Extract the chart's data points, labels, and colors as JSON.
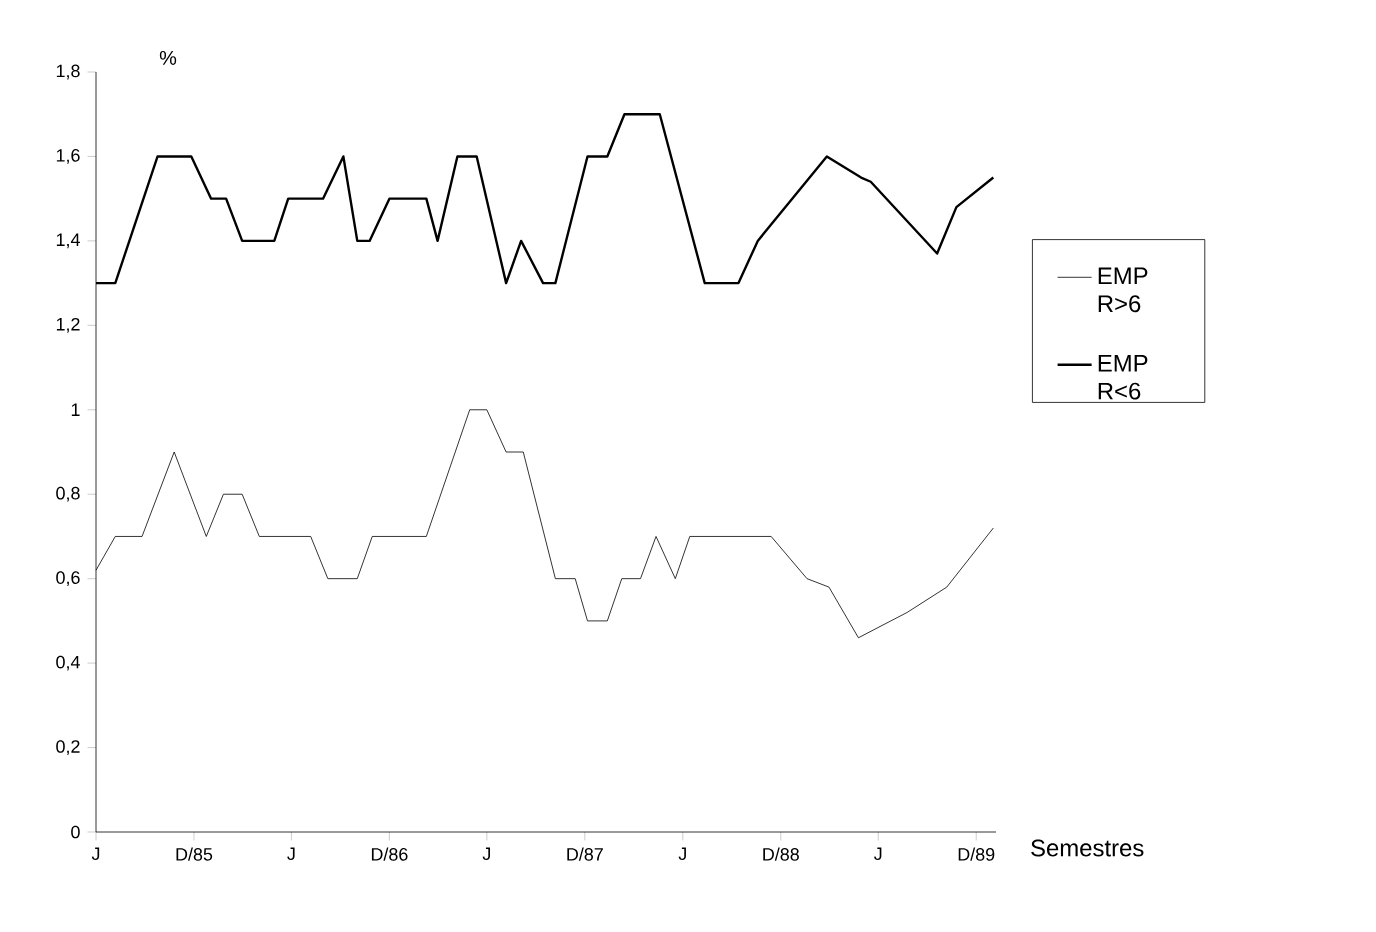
{
  "chart_data": {
    "type": "line",
    "ylabel": "%",
    "xlabel": "Semestres",
    "x": [
      "1985-06-01",
      "1985-07-07",
      "1985-09-24",
      "1985-11-26",
      "1986-01-02",
      "1986-01-30",
      "1986-03-01",
      "1986-04-30",
      "1986-05-26",
      "1986-07-30",
      "1986-09-06",
      "1986-10-02",
      "1986-10-25",
      "1986-12-01",
      "1987-02-08",
      "1987-03-01",
      "1987-04-07",
      "1987-05-13",
      "1987-07-07",
      "1987-08-04",
      "1987-09-14",
      "1987-10-07",
      "1987-12-06",
      "1988-01-12",
      "1988-02-13",
      "1988-04-19",
      "1988-07-12",
      "1988-09-13",
      "1988-10-19",
      "1989-02-25",
      "1989-04-30",
      "1989-05-18",
      "1989-09-19",
      "1989-10-25",
      "1990-01-02"
    ],
    "series": [
      {
        "name": "EMP R>6",
        "color": "#000000",
        "x": [
          "1985-06-01",
          "1985-07-07",
          "1985-08-26",
          "1985-10-25",
          "1985-12-24",
          "1986-01-25",
          "1986-03-01",
          "1986-04-02",
          "1986-07-07",
          "1986-08-08",
          "1986-10-02",
          "1986-10-30",
          "1987-02-08",
          "1987-04-30",
          "1987-06-01",
          "1987-07-07",
          "1987-08-08",
          "1987-10-07",
          "1987-11-13",
          "1987-12-06",
          "1988-01-12",
          "1988-02-08",
          "1988-03-14",
          "1988-04-12",
          "1988-05-18",
          "1988-06-14",
          "1988-11-13",
          "1989-01-19",
          "1989-03-01",
          "1989-04-25",
          "1989-07-25",
          "1989-10-07",
          "1990-01-02"
        ],
        "values": [
          0.62,
          0.7,
          0.7,
          0.9,
          0.7,
          0.8,
          0.8,
          0.7,
          0.7,
          0.6,
          0.6,
          0.7,
          0.7,
          1.0,
          1.0,
          0.9,
          0.9,
          0.6,
          0.6,
          0.5,
          0.5,
          0.6,
          0.6,
          0.7,
          0.6,
          0.7,
          0.7,
          0.6,
          0.58,
          0.46,
          0.52,
          0.58,
          0.72
        ]
      },
      {
        "name": "EMP R<6",
        "color": "#000000",
        "values": [
          1.3,
          1.3,
          1.6,
          1.6,
          1.5,
          1.5,
          1.4,
          1.4,
          1.5,
          1.5,
          1.6,
          1.4,
          1.4,
          1.5,
          1.5,
          1.4,
          1.6,
          1.6,
          1.3,
          1.4,
          1.3,
          1.3,
          1.6,
          1.6,
          1.7,
          1.7,
          1.3,
          1.3,
          1.4,
          1.6,
          1.55,
          1.54,
          1.37,
          1.48,
          1.55
        ]
      }
    ],
    "xlim": [
      "1985-06-01",
      "1990-01-07"
    ],
    "xticks": [
      {
        "value": "1985-06-01",
        "label": "J"
      },
      {
        "value": "1985-12-01",
        "label": "D/85"
      },
      {
        "value": "1986-06-01",
        "label": "J"
      },
      {
        "value": "1986-12-01",
        "label": "D/86"
      },
      {
        "value": "1987-06-01",
        "label": "J"
      },
      {
        "value": "1987-12-01",
        "label": "D/87"
      },
      {
        "value": "1988-06-01",
        "label": "J"
      },
      {
        "value": "1988-12-01",
        "label": "D/88"
      },
      {
        "value": "1989-06-01",
        "label": "J"
      },
      {
        "value": "1989-12-01",
        "label": "D/89"
      }
    ],
    "ylim": [
      0,
      1.8
    ],
    "yticks": [
      {
        "value": 0,
        "label": "0"
      },
      {
        "value": 0.2,
        "label": "0,2"
      },
      {
        "value": 0.4,
        "label": "0,4"
      },
      {
        "value": 0.6,
        "label": "0,6"
      },
      {
        "value": 0.8,
        "label": "0,8"
      },
      {
        "value": 1,
        "label": "1"
      },
      {
        "value": 1.2,
        "label": "1,2"
      },
      {
        "value": 1.4,
        "label": "1,4"
      },
      {
        "value": 1.6,
        "label": "1,6"
      },
      {
        "value": 1.8,
        "label": "1,8"
      }
    ],
    "grid": false,
    "legend": "right",
    "marker": "none",
    "line_style": "solid"
  }
}
